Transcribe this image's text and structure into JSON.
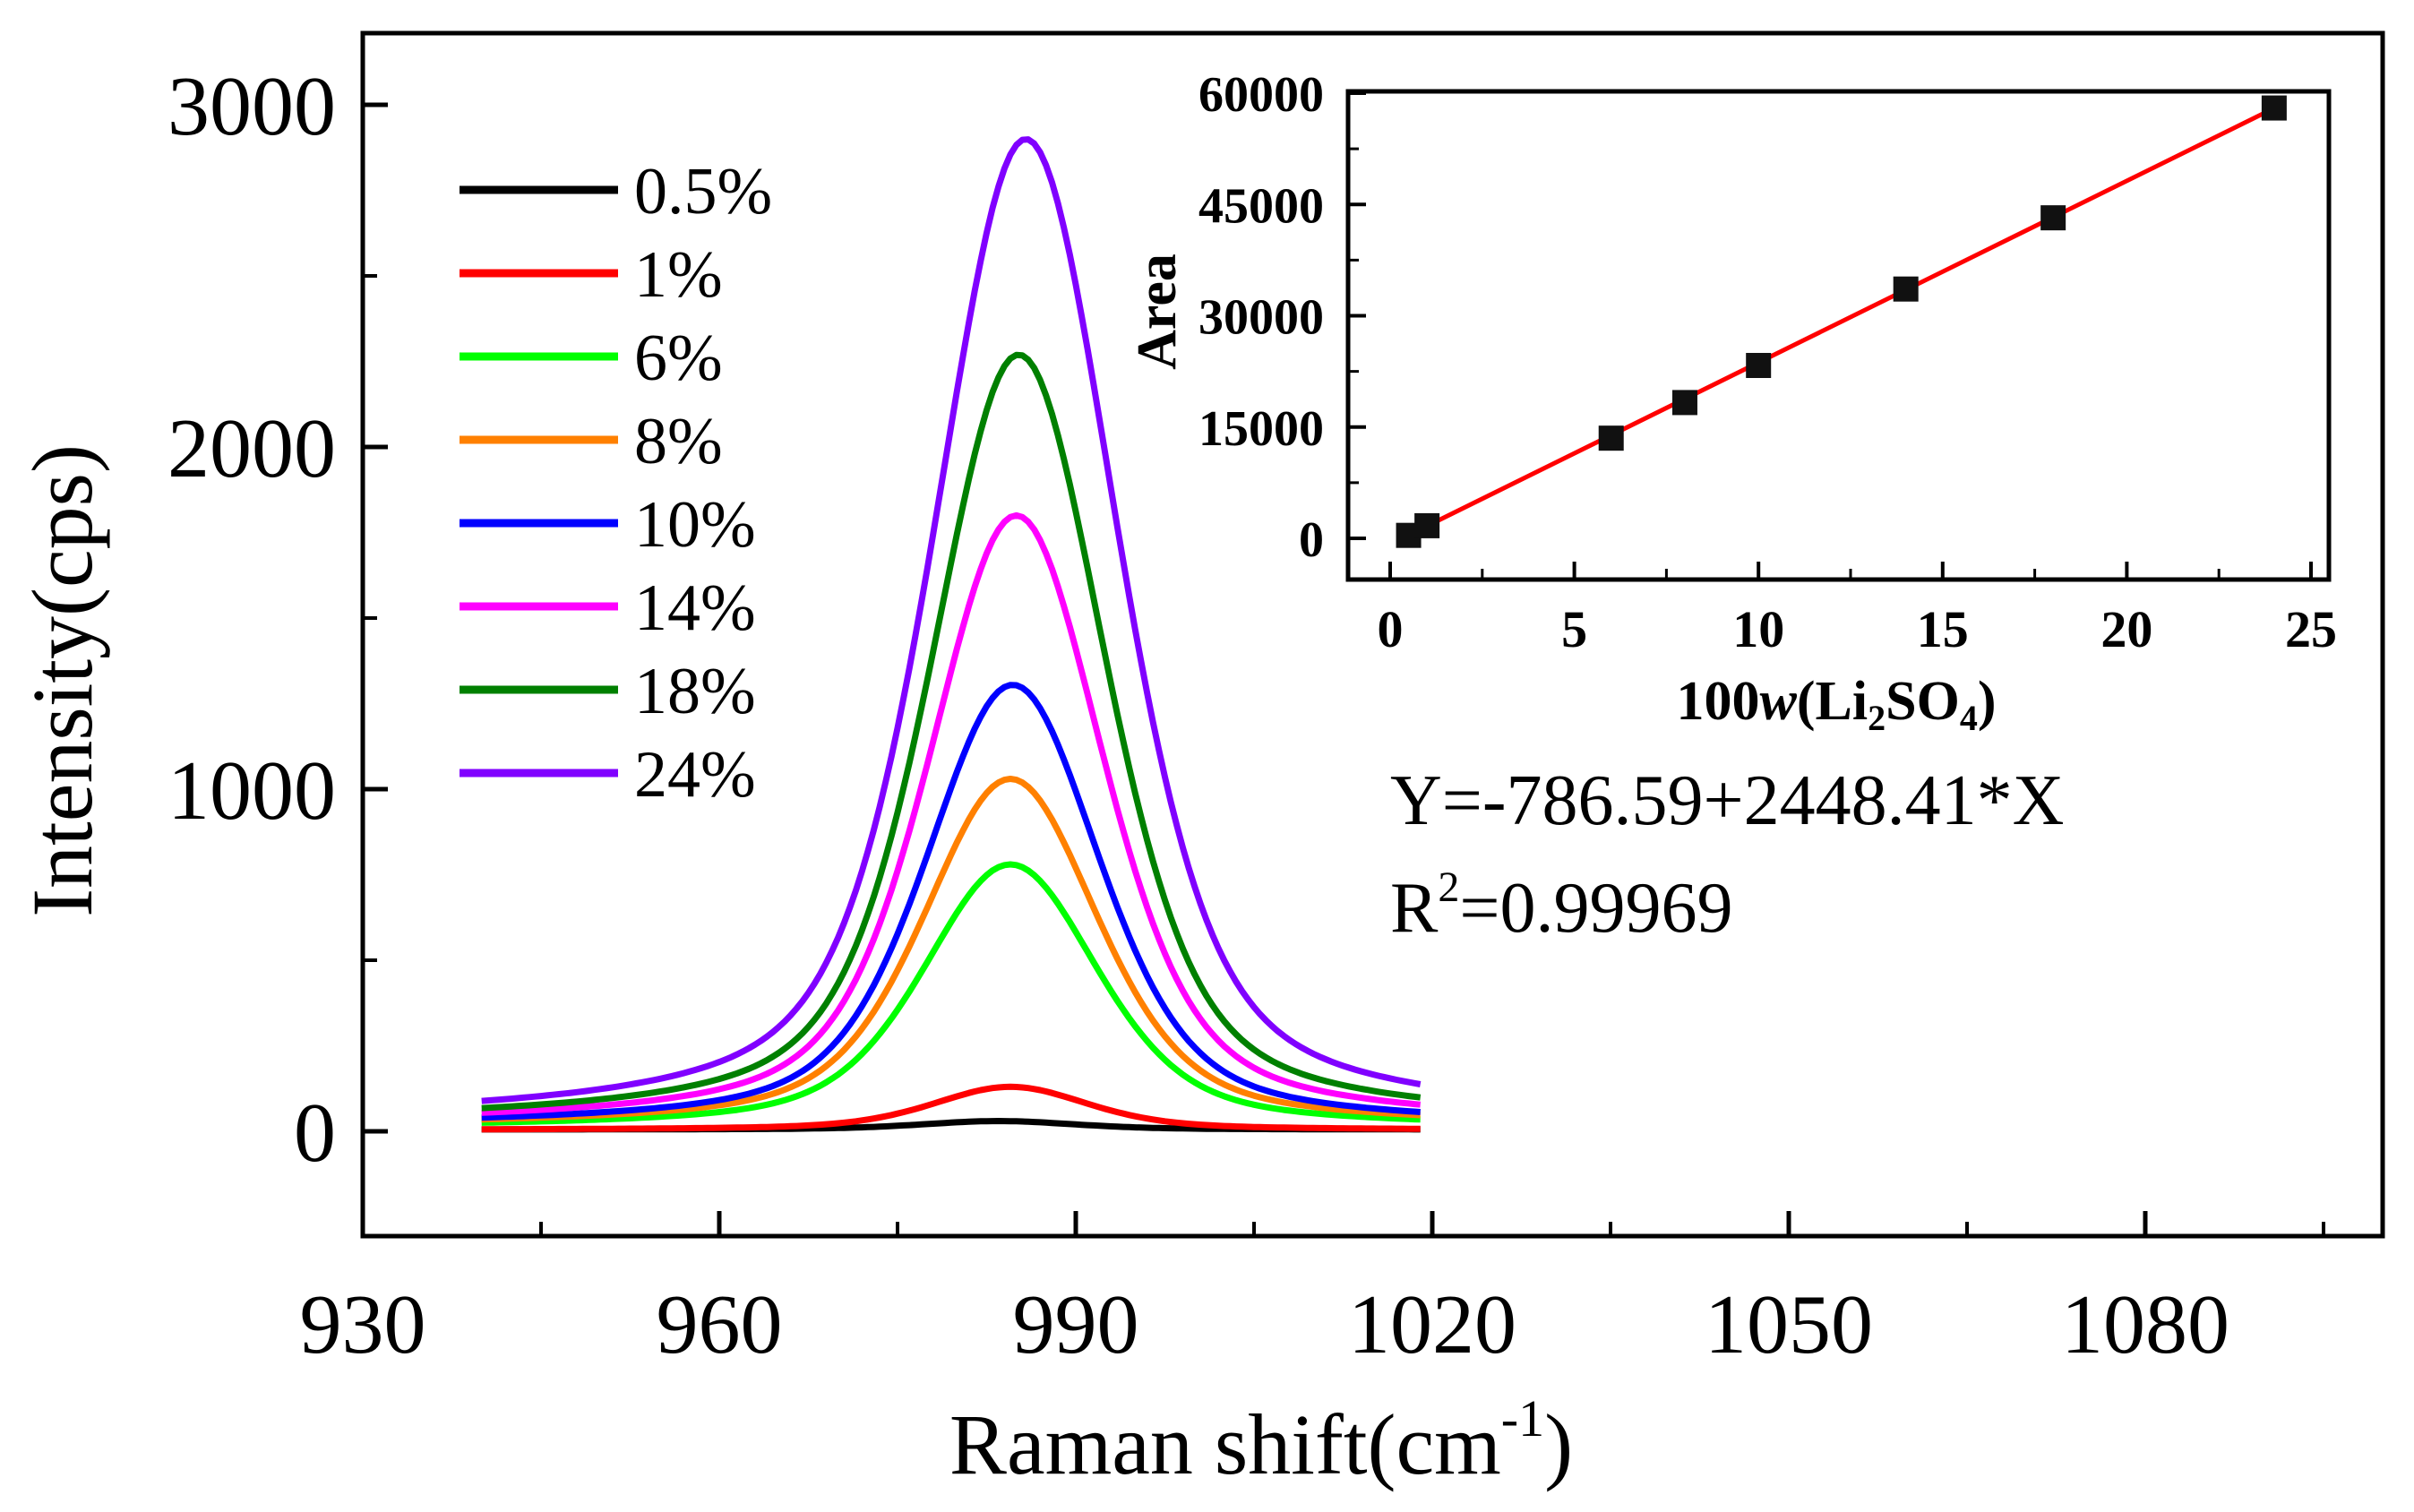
{
  "chart_data": [
    {
      "type": "line",
      "xlabel_main": "Raman shift(cm",
      "xlabel_sup": "-1",
      "xlabel_tail": ")",
      "ylabel": "Intensity(cps)",
      "xlim": [
        930,
        1100
      ],
      "ylim": [
        -300,
        3200
      ],
      "xticks": [
        930,
        960,
        990,
        1020,
        1050,
        1080
      ],
      "yticks": [
        0,
        1000,
        2000,
        3000
      ],
      "series": [
        {
          "name": "0.5%",
          "color": "#000000",
          "peak": 30,
          "baseline": 5,
          "center": 983.5,
          "width": 8.5
        },
        {
          "name": "1%",
          "color": "#ff0000",
          "peak": 130,
          "baseline": 4,
          "center": 984.5,
          "width": 8.5
        },
        {
          "name": "6%",
          "color": "#00ff00",
          "peak": 780,
          "baseline": 10,
          "center": 984.5,
          "width": 9.5
        },
        {
          "name": "8%",
          "color": "#ff8000",
          "peak": 1030,
          "baseline": 15,
          "center": 984.5,
          "width": 9.5
        },
        {
          "name": "10%",
          "color": "#0000ff",
          "peak": 1305,
          "baseline": 15,
          "center": 984.7,
          "width": 9.5
        },
        {
          "name": "14%",
          "color": "#ff00ff",
          "peak": 1800,
          "baseline": 20,
          "center": 985.0,
          "width": 9.5
        },
        {
          "name": "18%",
          "color": "#008000",
          "peak": 2270,
          "baseline": 25,
          "center": 985.2,
          "width": 9.5
        },
        {
          "name": "24%",
          "color": "#8000ff",
          "peak": 2900,
          "baseline": 30,
          "center": 985.8,
          "width": 10.0
        }
      ],
      "x_range_curves": [
        940,
        1019
      ]
    },
    {
      "type": "scatter",
      "xlabel_pre": "100",
      "xlabel_italic": "w",
      "xlabel_li": "(Li",
      "xlabel_sub2": "2",
      "xlabel_so": "SO",
      "xlabel_sub4": "4",
      "xlabel_close": ")",
      "ylabel": "Area",
      "xlim": [
        -1,
        25
      ],
      "ylim": [
        -5000,
        60000
      ],
      "xticks": [
        0,
        5,
        10,
        15,
        20,
        25
      ],
      "yticks": [
        0,
        15000,
        30000,
        45000,
        60000
      ],
      "points": [
        {
          "x": 0.5,
          "y": 400
        },
        {
          "x": 1,
          "y": 1700
        },
        {
          "x": 6,
          "y": 13500
        },
        {
          "x": 8,
          "y": 18300
        },
        {
          "x": 10,
          "y": 23300
        },
        {
          "x": 14,
          "y": 33600
        },
        {
          "x": 18,
          "y": 43200
        },
        {
          "x": 24,
          "y": 58000
        }
      ],
      "fit": {
        "intercept": -786.59,
        "slope": 2448.41,
        "x_from": 0.5,
        "x_to": 24.2,
        "color": "#ff0000"
      },
      "equation_text": "Y=-786.59+2448.41*X",
      "r2_main": "R",
      "r2_sup": "2",
      "r2_value": "=0.99969"
    }
  ]
}
